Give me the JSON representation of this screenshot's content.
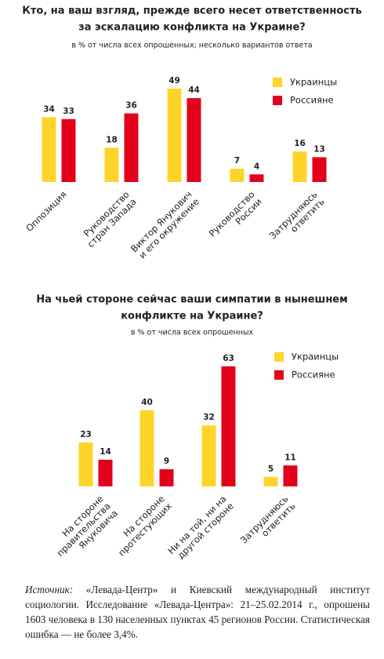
{
  "chart_data": [
    {
      "type": "bar",
      "title": [
        "Кто, на ваш взгляд, прежде всего несет ответственность",
        "за эскалацию конфликта на Украине?"
      ],
      "subtitle": "в % от числа всех опрошенных; несколько вариантов ответа",
      "categories": [
        [
          "Оппозиция"
        ],
        [
          "Руководство",
          "стран Запада"
        ],
        [
          "Виктор Янукович",
          "и его окружение"
        ],
        [
          "Руководство",
          "России"
        ],
        [
          "Затрудняюсь",
          "ответить"
        ]
      ],
      "series": [
        {
          "name": "Украинцы",
          "color": "#ffd42a",
          "values": [
            34,
            18,
            49,
            7,
            16
          ]
        },
        {
          "name": "Россияне",
          "color": "#e3001b",
          "values": [
            33,
            36,
            44,
            4,
            13
          ]
        }
      ]
    },
    {
      "type": "bar",
      "title": [
        "На чьей стороне сейчас ваши симпатии в нынешнем",
        "конфликте на Украине?"
      ],
      "subtitle": "в % от числа всех опрошенных",
      "categories": [
        [
          "На стороне",
          "правительства",
          "Януковича"
        ],
        [
          "На стороне",
          "протестующих"
        ],
        [
          "Ни на той, ни на",
          "другой стороне"
        ],
        [
          "Затрудняюсь",
          "ответить"
        ]
      ],
      "series": [
        {
          "name": "Украинцы",
          "color": "#ffd42a",
          "values": [
            23,
            40,
            32,
            5
          ]
        },
        {
          "name": "Россияне",
          "color": "#e3001b",
          "values": [
            14,
            9,
            63,
            11
          ]
        }
      ]
    }
  ],
  "source": {
    "label": "Источник:",
    "text": "«Левада-Центр» и Киевский международный институт социологии. Исследование «Левада-Центра»: 21–25.02.2014 г., опрошены 1603 человека в 130 населенных пунктах 45 регионов России. Статистическая ошибка — не более 3,4%."
  }
}
